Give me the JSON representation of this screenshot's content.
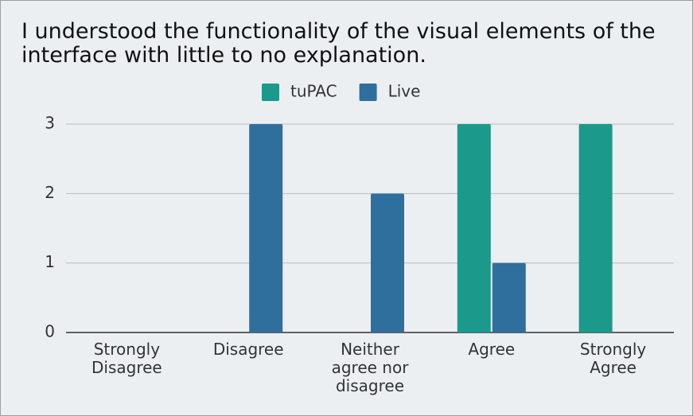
{
  "chart_data": {
    "type": "bar",
    "title": "I understood the functionality of the visual elements of the interface with little to no explanation.",
    "categories": [
      "Strongly Disagree",
      "Disagree",
      "Neither agree nor disagree",
      "Agree",
      "Strongly Agree"
    ],
    "series": [
      {
        "name": "tuPAC",
        "color": "#1b998b",
        "values": [
          0,
          0,
          0,
          3,
          3
        ]
      },
      {
        "name": "Live",
        "color": "#2e6f9e",
        "values": [
          0,
          3,
          2,
          1,
          0
        ]
      }
    ],
    "ylim": [
      0,
      3
    ],
    "yticks": [
      0,
      1,
      2,
      3
    ],
    "grid": true,
    "legend": "top"
  }
}
